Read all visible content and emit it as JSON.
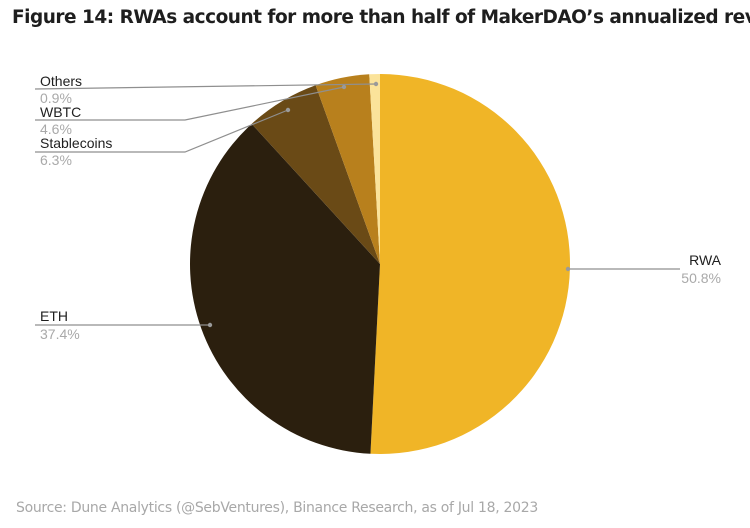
{
  "header": {
    "title": "Figure 14: RWAs account for more than half of MakerDAO’s annualized revenue"
  },
  "footer": {
    "source": "Source: Dune Analytics (@SebVentures), Binance Research, as of Jul 18, 2023"
  },
  "chart_data": {
    "type": "pie",
    "title": "Figure 14: RWAs account for more than half of MakerDAO’s annualized revenue",
    "categories": [
      "RWA",
      "ETH",
      "Stablecoins",
      "WBTC",
      "Others"
    ],
    "values": [
      50.8,
      37.4,
      6.3,
      4.6,
      0.9
    ],
    "labels": [
      "50.8%",
      "37.4%",
      "6.3%",
      "4.6%",
      "0.9%"
    ],
    "colors": [
      "#F0B527",
      "#2B1F0E",
      "#6A4A16",
      "#B8801D",
      "#FBE39A"
    ],
    "start_angle": "12 o'clock",
    "direction": "clockwise",
    "unit": "% of annualized revenue",
    "legend_position": "callout labels"
  },
  "slices": {
    "rwa": {
      "label": "RWA",
      "pct": "50.8%"
    },
    "eth": {
      "label": "ETH",
      "pct": "37.4%"
    },
    "stablecoins": {
      "label": "Stablecoins",
      "pct": "6.3%"
    },
    "wbtc": {
      "label": "WBTC",
      "pct": "4.6%"
    },
    "others": {
      "label": "Others",
      "pct": "0.9%"
    }
  }
}
